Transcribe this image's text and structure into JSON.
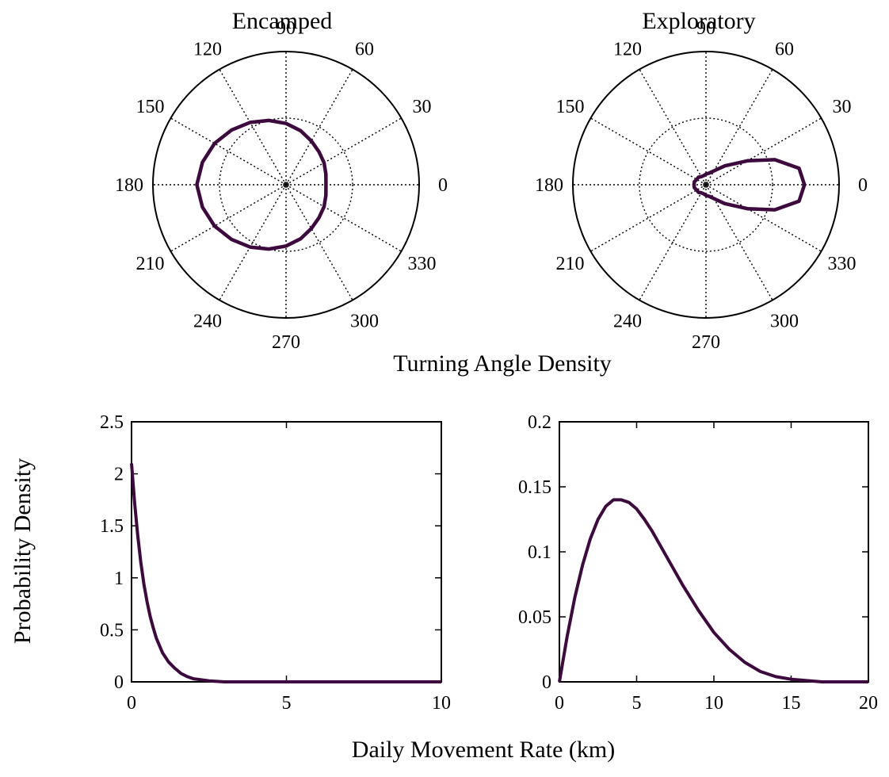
{
  "figure": {
    "polar_label": "Turning Angle Density",
    "xlabel": "Daily Movement Rate (km)",
    "ylabel": "Probability Density",
    "line_color": "#3d0a3d"
  },
  "chart_data": [
    {
      "type": "line",
      "subtype": "polar",
      "title": "Encamped",
      "angle_ticks_deg": [
        0,
        30,
        60,
        90,
        120,
        150,
        180,
        210,
        240,
        270,
        300,
        330
      ],
      "rings": 2,
      "grid": "dotted",
      "series": [
        {
          "theta_deg": [
            0,
            15,
            30,
            45,
            60,
            75,
            90,
            105,
            120,
            135,
            150,
            165,
            180,
            195,
            210,
            225,
            240,
            255,
            270,
            285,
            300,
            315,
            330,
            345
          ],
          "r": [
            0.3,
            0.31,
            0.33,
            0.35,
            0.38,
            0.42,
            0.46,
            0.5,
            0.54,
            0.58,
            0.62,
            0.65,
            0.67,
            0.65,
            0.62,
            0.58,
            0.54,
            0.5,
            0.46,
            0.42,
            0.38,
            0.35,
            0.33,
            0.31
          ]
        }
      ]
    },
    {
      "type": "line",
      "subtype": "polar",
      "title": "Exploratory",
      "angle_ticks_deg": [
        0,
        30,
        60,
        90,
        120,
        150,
        180,
        210,
        240,
        270,
        300,
        330
      ],
      "rings": 2,
      "grid": "dotted",
      "series": [
        {
          "theta_deg": [
            0,
            10,
            20,
            30,
            45,
            60,
            75,
            90,
            105,
            120,
            135,
            150,
            165,
            180,
            195,
            210,
            225,
            240,
            255,
            270,
            285,
            300,
            315,
            330,
            340,
            350
          ],
          "r": [
            0.74,
            0.71,
            0.55,
            0.36,
            0.2,
            0.12,
            0.09,
            0.08,
            0.07,
            0.07,
            0.08,
            0.08,
            0.09,
            0.09,
            0.09,
            0.08,
            0.08,
            0.07,
            0.07,
            0.08,
            0.09,
            0.12,
            0.2,
            0.36,
            0.55,
            0.71
          ]
        }
      ]
    },
    {
      "type": "line",
      "xlim": [
        0,
        10
      ],
      "ylim": [
        0,
        2.5
      ],
      "xticks": [
        "0",
        "5",
        "10"
      ],
      "yticks": [
        "0",
        "0.5",
        "1",
        "1.5",
        "2",
        "2.5"
      ],
      "series": [
        {
          "x": [
            0,
            0.1,
            0.2,
            0.3,
            0.4,
            0.5,
            0.6,
            0.7,
            0.8,
            0.9,
            1.0,
            1.2,
            1.4,
            1.6,
            1.8,
            2.0,
            2.5,
            3,
            4,
            5,
            6,
            7,
            8,
            9,
            10
          ],
          "y": [
            2.1,
            1.72,
            1.41,
            1.15,
            0.94,
            0.77,
            0.63,
            0.52,
            0.42,
            0.35,
            0.28,
            0.19,
            0.13,
            0.08,
            0.05,
            0.03,
            0.01,
            0,
            0,
            0,
            0,
            0,
            0,
            0,
            0
          ]
        }
      ]
    },
    {
      "type": "line",
      "xlim": [
        0,
        20
      ],
      "ylim": [
        0,
        0.2
      ],
      "xticks": [
        "0",
        "5",
        "10",
        "15",
        "20"
      ],
      "yticks": [
        "0",
        "0.05",
        "0.1",
        "0.15",
        "0.2"
      ],
      "series": [
        {
          "x": [
            0,
            0.5,
            1,
            1.5,
            2,
            2.5,
            3,
            3.5,
            4,
            4.5,
            5,
            5.5,
            6,
            7,
            8,
            9,
            10,
            11,
            12,
            13,
            14,
            15,
            16,
            17,
            18,
            19,
            20
          ],
          "y": [
            0,
            0.035,
            0.065,
            0.09,
            0.11,
            0.125,
            0.135,
            0.14,
            0.14,
            0.138,
            0.133,
            0.125,
            0.116,
            0.095,
            0.074,
            0.055,
            0.038,
            0.025,
            0.015,
            0.008,
            0.004,
            0.002,
            0.001,
            0,
            0,
            0,
            0
          ]
        }
      ]
    }
  ]
}
